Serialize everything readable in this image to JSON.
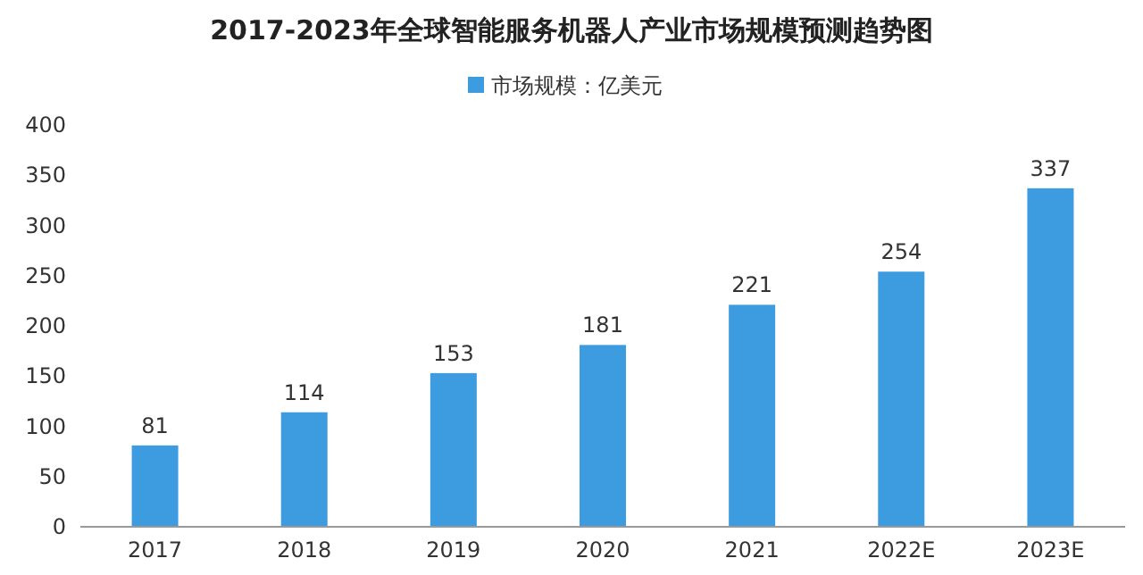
{
  "chart_data": {
    "type": "bar",
    "title": "2017-2023年全球智能服务机器人产业市场规模预测趋势图",
    "categories": [
      "2017",
      "2018",
      "2019",
      "2020",
      "2021",
      "2022E",
      "2023E"
    ],
    "series": [
      {
        "name": "市场规模：亿美元",
        "color": "#3d9be0",
        "values": [
          81,
          114,
          153,
          181,
          221,
          254,
          337
        ]
      }
    ],
    "ylim": [
      0,
      400
    ],
    "yticks": [
      0,
      50,
      100,
      150,
      200,
      250,
      300,
      350,
      400
    ],
    "data_labels": true,
    "legend": "top"
  }
}
